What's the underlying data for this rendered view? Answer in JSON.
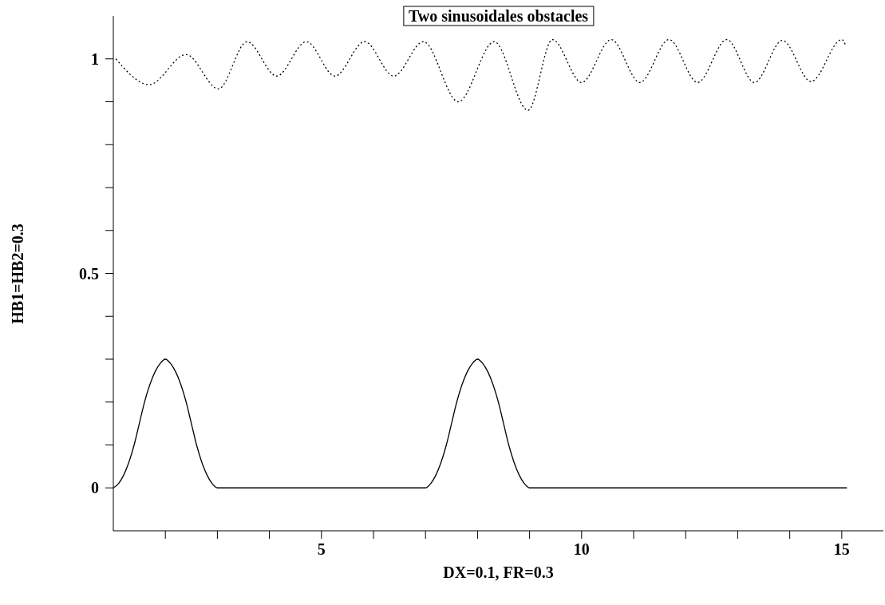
{
  "chart_data": {
    "type": "line",
    "title": "Two sinusoidales obstacles",
    "xlabel": "DX=0.1, FR=0.3",
    "ylabel": "HB1=HB2=0.3",
    "xlim": [
      1,
      15.8
    ],
    "xticks": [
      {
        "value": 2,
        "label": null
      },
      {
        "value": 3,
        "label": null
      },
      {
        "value": 4,
        "label": null
      },
      5,
      {
        "value": 6,
        "label": null
      },
      {
        "value": 7,
        "label": null
      },
      {
        "value": 8,
        "label": null
      },
      {
        "value": 9,
        "label": null
      },
      10,
      {
        "value": 11,
        "label": null
      },
      {
        "value": 12,
        "label": null
      },
      {
        "value": 13,
        "label": null
      },
      {
        "value": 14,
        "label": null
      },
      15
    ],
    "ylim": [
      -0.1,
      1.1
    ],
    "yticks": [
      0,
      {
        "value": 0.1,
        "label": null
      },
      {
        "value": 0.2,
        "label": null
      },
      {
        "value": 0.3,
        "label": null
      },
      {
        "value": 0.4,
        "label": null
      },
      0.5,
      {
        "value": 0.6,
        "label": null
      },
      {
        "value": 0.7,
        "label": null
      },
      {
        "value": 0.8,
        "label": null
      },
      {
        "value": 0.9,
        "label": null
      },
      1
    ],
    "grid": false,
    "legend": false,
    "series": [
      {
        "color": "#000000",
        "line_style": "dotted",
        "x": [
          1.05,
          1.69,
          2.4,
          3.02,
          3.57,
          4.14,
          4.71,
          5.26,
          5.83,
          6.39,
          6.96,
          7.63,
          8.32,
          8.97,
          9.44,
          10.0,
          10.57,
          11.12,
          11.68,
          12.23,
          12.79,
          13.32,
          13.86,
          14.41,
          15.0,
          15.08
        ],
        "values": [
          1.0,
          0.94,
          1.01,
          0.93,
          1.04,
          0.96,
          1.04,
          0.96,
          1.04,
          0.96,
          1.04,
          0.9,
          1.04,
          0.88,
          1.045,
          0.945,
          1.045,
          0.945,
          1.045,
          0.945,
          1.045,
          0.945,
          1.043,
          0.947,
          1.045,
          1.03
        ]
      },
      {
        "color": "#000000",
        "line_style": "solid",
        "x": [
          1.0,
          1.1,
          1.2,
          1.3,
          1.4,
          1.5,
          1.6,
          1.7,
          1.8,
          1.9,
          2.0,
          2.1,
          2.2,
          2.3,
          2.4,
          2.5,
          2.6,
          2.7,
          2.8,
          2.9,
          3.0,
          7.0,
          7.1,
          7.2,
          7.3,
          7.4,
          7.5,
          7.6,
          7.7,
          7.8,
          7.9,
          8.0,
          8.1,
          8.2,
          8.3,
          8.4,
          8.5,
          8.6,
          8.7,
          8.8,
          8.9,
          9.0,
          15.1
        ],
        "values": [
          0,
          0.01,
          0.03,
          0.06,
          0.1,
          0.15,
          0.2,
          0.24,
          0.27,
          0.29,
          0.3,
          0.29,
          0.27,
          0.24,
          0.2,
          0.15,
          0.1,
          0.06,
          0.03,
          0.01,
          0,
          0,
          0.01,
          0.03,
          0.06,
          0.1,
          0.15,
          0.2,
          0.24,
          0.27,
          0.29,
          0.3,
          0.29,
          0.27,
          0.24,
          0.2,
          0.15,
          0.1,
          0.06,
          0.03,
          0.01,
          0,
          0
        ]
      }
    ]
  }
}
